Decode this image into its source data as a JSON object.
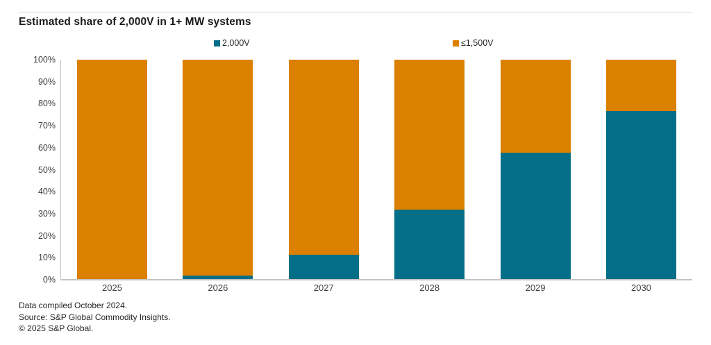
{
  "title": "Estimated share of 2,000V in 1+ MW systems",
  "legend": [
    {
      "label": "2,000V",
      "color": "#036E87"
    },
    {
      "label": "≤1,500V",
      "color": "#DB8000"
    }
  ],
  "chart_data": {
    "type": "bar",
    "stacked": true,
    "title": "Estimated share of 2,000V in 1+ MW systems",
    "categories": [
      "2025",
      "2026",
      "2027",
      "2028",
      "2029",
      "2030"
    ],
    "series": [
      {
        "name": "2,000V",
        "color": "#036E87",
        "values": [
          0,
          1.5,
          11,
          31.5,
          57.5,
          76.5
        ]
      },
      {
        "name": "≤1,500V",
        "color": "#DB8000",
        "values": [
          100,
          98.5,
          89,
          68.5,
          42.5,
          23.5
        ]
      }
    ],
    "xlabel": "",
    "ylabel": "",
    "ylim": [
      0,
      100
    ],
    "y_ticks": [
      "100%",
      "90%",
      "80%",
      "70%",
      "60%",
      "50%",
      "40%",
      "30%",
      "20%",
      "10%",
      "0%"
    ],
    "grid": false,
    "legend_position": "top"
  },
  "footer": {
    "line1": "Data compiled October 2024.",
    "line2": "Source: S&P Global Commodity Insights.",
    "line3": "© 2025 S&P Global."
  }
}
